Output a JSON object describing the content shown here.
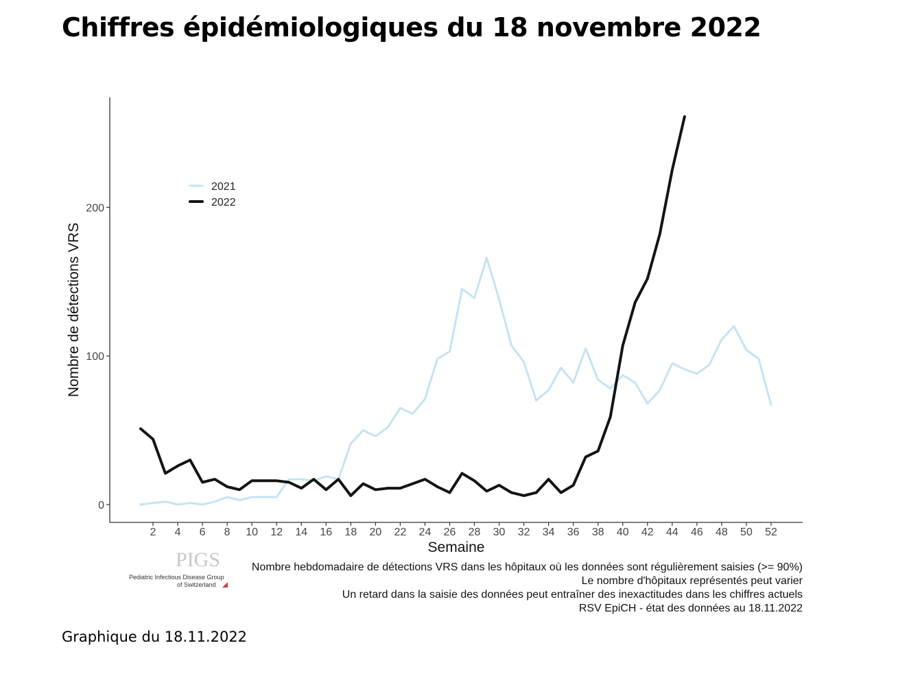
{
  "title": "Chiffres épidémiologiques du 18 novembre 2022",
  "caption": "Graphique du 18.11.2022",
  "logo": {
    "text": "PIGS",
    "line1": "Pediatric Infectious Disease Group",
    "line2": "of Switzerland",
    "accent_color": "#e53935"
  },
  "chart_data": {
    "type": "line",
    "xlabel": "Semaine",
    "ylabel": "Nombre de détections VRS",
    "xlim": [
      1,
      52
    ],
    "ylim": [
      -12,
      274
    ],
    "xticks": [
      2,
      4,
      6,
      8,
      10,
      12,
      14,
      16,
      18,
      20,
      22,
      24,
      26,
      28,
      30,
      32,
      34,
      36,
      38,
      40,
      42,
      44,
      46,
      48,
      50,
      52
    ],
    "yticks": [
      0,
      100,
      200
    ],
    "legend_position": "top-left",
    "grid": false,
    "series": [
      {
        "name": "2021",
        "color": "#c6e3f3",
        "x": [
          1,
          2,
          3,
          4,
          5,
          6,
          7,
          8,
          9,
          10,
          11,
          12,
          13,
          14,
          15,
          16,
          17,
          18,
          19,
          20,
          21,
          22,
          23,
          24,
          25,
          26,
          27,
          28,
          29,
          30,
          31,
          32,
          33,
          34,
          35,
          36,
          37,
          38,
          39,
          40,
          41,
          42,
          43,
          44,
          45,
          46,
          47,
          48,
          49,
          50,
          51,
          52
        ],
        "values": [
          0,
          1,
          2,
          0,
          1,
          0,
          2,
          5,
          3,
          5,
          5,
          5,
          17,
          17,
          16,
          19,
          17,
          41,
          50,
          46,
          52,
          65,
          61,
          71,
          98,
          103,
          145,
          139,
          166,
          138,
          107,
          96,
          70,
          77,
          92,
          82,
          105,
          84,
          78,
          87,
          82,
          68,
          77,
          95,
          91,
          88,
          94,
          111,
          120,
          104,
          98,
          67
        ]
      },
      {
        "name": "2022",
        "color": "#141414",
        "x": [
          1,
          2,
          3,
          4,
          5,
          6,
          7,
          8,
          9,
          10,
          11,
          12,
          13,
          14,
          15,
          16,
          17,
          18,
          19,
          20,
          21,
          22,
          23,
          24,
          25,
          26,
          27,
          28,
          29,
          30,
          31,
          32,
          33,
          34,
          35,
          36,
          37,
          38,
          39,
          40,
          41,
          42,
          43,
          44,
          45
        ],
        "values": [
          51,
          44,
          21,
          26,
          30,
          15,
          17,
          12,
          10,
          16,
          16,
          16,
          15,
          11,
          17,
          10,
          17,
          6,
          14,
          10,
          11,
          11,
          14,
          17,
          12,
          8,
          21,
          16,
          9,
          13,
          8,
          6,
          8,
          17,
          8,
          13,
          32,
          36,
          59,
          107,
          136,
          152,
          182,
          225,
          261
        ]
      }
    ],
    "notes": [
      "Nombre hebdomadaire de détections VRS dans les hôpitaux où les données sont régulièrement saisies (>= 90%)",
      "Le nombre d'hôpitaux représentés peut varier",
      "Un retard dans la saisie des données peut entraîner des inexactitudes dans les chiffres actuels",
      "RSV EpiCH - état des données au 18.11.2022"
    ]
  }
}
